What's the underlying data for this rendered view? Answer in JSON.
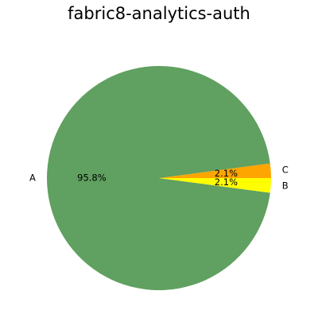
{
  "chart_data": {
    "type": "pie",
    "title": "fabric8-analytics-auth",
    "start_angle_deg": 0,
    "direction": "counterclockwise",
    "slices": [
      {
        "label": "C",
        "value": 2.1,
        "pct_label": "2.1%",
        "color": "#ffa500"
      },
      {
        "label": "A",
        "value": 95.8,
        "pct_label": "95.8%",
        "color": "#60a060"
      },
      {
        "label": "B",
        "value": 2.1,
        "pct_label": "2.1%",
        "color": "#ffff00"
      }
    ]
  }
}
